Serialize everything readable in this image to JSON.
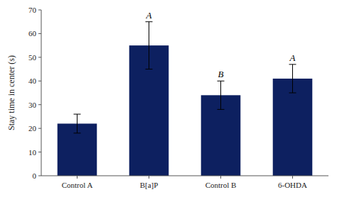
{
  "chart_data": {
    "type": "bar",
    "categories": [
      "Control A",
      "B[a]P",
      "Control B",
      "6-OHDA"
    ],
    "values": [
      22,
      55,
      34,
      41
    ],
    "errors": [
      4,
      10,
      6,
      6
    ],
    "annotations": [
      null,
      "A",
      "B",
      "A"
    ],
    "color": "#0d2060",
    "y_label": "Stay time in center (s)",
    "ylim": [
      0,
      70
    ],
    "yticks": [
      0,
      10,
      20,
      30,
      40,
      50,
      60,
      70
    ],
    "grid": false
  }
}
